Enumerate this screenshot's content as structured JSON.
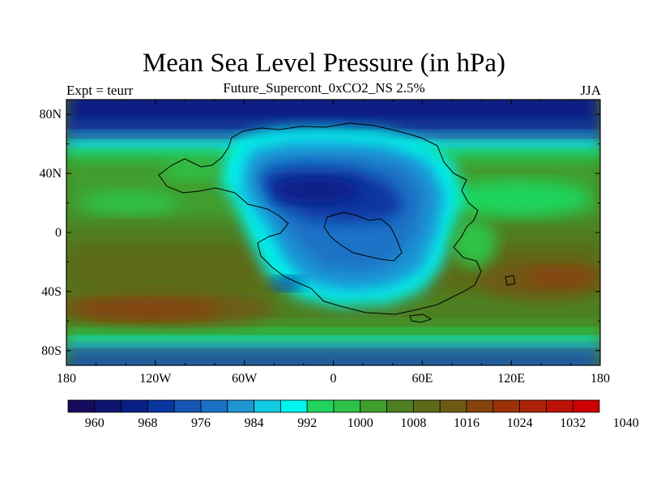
{
  "figure": {
    "title": "Mean Sea Level Pressure (in hPa)",
    "subtitle": "Future_Supercont_0xCO2_NS 2.5%",
    "left_label": "Expt = teurr",
    "right_label": "JJA"
  },
  "map": {
    "lon_ticks": [
      "180",
      "120W",
      "60W",
      "0",
      "60E",
      "120E",
      "180"
    ],
    "lat_ticks": [
      "80N",
      "40N",
      "0",
      "40S",
      "80S"
    ]
  },
  "colorbar": {
    "labels": [
      "960",
      "968",
      "976",
      "984",
      "992",
      "1000",
      "1008",
      "1016",
      "1024",
      "1032",
      "1040"
    ],
    "colors": [
      "#160a5e",
      "#0d1470",
      "#081f86",
      "#0a36a0",
      "#1556b5",
      "#1a72c6",
      "#1f94d3",
      "#12c9e2",
      "#00f5ef",
      "#1fd45c",
      "#2ec24a",
      "#3f9f2d",
      "#4d7f22",
      "#5b6b18",
      "#6e5a12",
      "#86430c",
      "#9b3209",
      "#ad220a",
      "#be1207",
      "#cc0000"
    ]
  }
}
